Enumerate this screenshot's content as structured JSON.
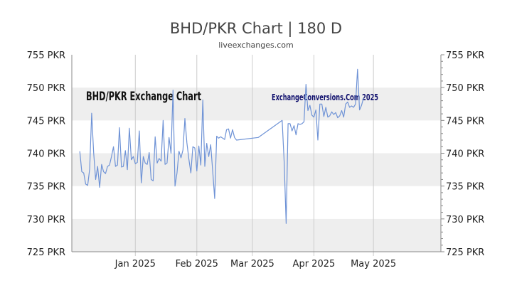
{
  "page": {
    "title": "BHD/PKR Chart | 180 D",
    "subtitle": "liveexchanges.com",
    "watermark_left": "BHD/PKR Exchange Chart",
    "watermark_right": "ExchangeConversions.Com 2025"
  },
  "colors": {
    "line": "#6f93d6",
    "band": "#eeeeee",
    "grid_vertical": "#cccccc",
    "axis": "#888888"
  },
  "chart_data": {
    "type": "line",
    "title": "BHD/PKR Chart | 180 D",
    "subtitle": "liveexchanges.com",
    "xlabel": "",
    "ylabel": "",
    "y_ticks": [
      "725 PKR",
      "730 PKR",
      "735 PKR",
      "740 PKR",
      "745 PKR",
      "750 PKR",
      "755 PKR"
    ],
    "y_tick_values": [
      725,
      730,
      735,
      740,
      745,
      750,
      755
    ],
    "ylim": [
      725,
      755
    ],
    "x_ticks": [
      "Jan 2025",
      "Feb 2025",
      "Mar 2025",
      "Apr 2025",
      "May 2025"
    ],
    "x_tick_values": [
      32,
      63,
      91,
      122,
      152
    ],
    "xlim": [
      0,
      186
    ],
    "series": [
      {
        "values": [
          [
            4,
            740.3
          ],
          [
            5,
            737.2
          ],
          [
            6,
            737.0
          ],
          [
            7,
            735.3
          ],
          [
            8,
            735.1
          ],
          [
            9,
            737.6
          ],
          [
            10,
            746.1
          ],
          [
            11,
            740.1
          ],
          [
            12,
            736.0
          ],
          [
            13,
            738.0
          ],
          [
            14,
            734.8
          ],
          [
            15,
            738.3
          ],
          [
            16,
            737.2
          ],
          [
            17,
            736.9
          ],
          [
            18,
            738.0
          ],
          [
            19,
            738.2
          ],
          [
            20,
            739.5
          ],
          [
            21,
            741.0
          ],
          [
            22,
            738.0
          ],
          [
            23,
            738.2
          ],
          [
            24,
            743.9
          ],
          [
            25,
            737.9
          ],
          [
            26,
            738.0
          ],
          [
            27,
            740.4
          ],
          [
            28,
            737.5
          ],
          [
            29,
            743.8
          ],
          [
            30,
            739.0
          ],
          [
            31,
            739.5
          ],
          [
            32,
            738.4
          ],
          [
            33,
            738.6
          ],
          [
            34,
            743.4
          ],
          [
            35,
            735.5
          ],
          [
            36,
            739.5
          ],
          [
            37,
            738.5
          ],
          [
            38,
            738.3
          ],
          [
            39,
            740.1
          ],
          [
            40,
            736.0
          ],
          [
            41,
            735.8
          ],
          [
            42,
            742.5
          ],
          [
            43,
            738.5
          ],
          [
            44,
            739.2
          ],
          [
            45,
            738.8
          ],
          [
            46,
            745.0
          ],
          [
            47,
            738.3
          ],
          [
            48,
            738.5
          ],
          [
            49,
            742.4
          ],
          [
            50,
            740.0
          ],
          [
            51,
            749.6
          ],
          [
            52,
            735.0
          ],
          [
            53,
            737.0
          ],
          [
            54,
            740.3
          ],
          [
            55,
            739.3
          ],
          [
            56,
            740.5
          ],
          [
            57,
            745.3
          ],
          [
            58,
            741.6
          ],
          [
            59,
            739.1
          ],
          [
            60,
            737.0
          ],
          [
            61,
            741.0
          ],
          [
            62,
            740.8
          ],
          [
            63,
            737.3
          ],
          [
            64,
            741.1
          ],
          [
            65,
            738.2
          ],
          [
            66,
            748.1
          ],
          [
            67,
            738.0
          ],
          [
            68,
            741.5
          ],
          [
            69,
            739.5
          ],
          [
            70,
            741.3
          ],
          [
            71,
            737.3
          ],
          [
            72,
            733.1
          ],
          [
            73,
            742.6
          ],
          [
            74,
            742.3
          ],
          [
            75,
            742.5
          ],
          [
            76,
            742.3
          ],
          [
            77,
            742.1
          ],
          [
            78,
            743.6
          ],
          [
            79,
            743.7
          ],
          [
            80,
            742.3
          ],
          [
            81,
            743.6
          ],
          [
            82,
            742.4
          ],
          [
            83,
            742.0
          ],
          [
            94,
            742.4
          ],
          [
            106,
            745.0
          ],
          [
            107,
            738.7
          ],
          [
            108,
            729.3
          ],
          [
            109,
            744.5
          ],
          [
            110,
            744.5
          ],
          [
            111,
            743.4
          ],
          [
            112,
            744.2
          ],
          [
            113,
            742.8
          ],
          [
            114,
            744.5
          ],
          [
            115,
            744.4
          ],
          [
            116,
            744.5
          ],
          [
            117,
            744.8
          ],
          [
            118,
            750.5
          ],
          [
            119,
            746.5
          ],
          [
            120,
            747.3
          ],
          [
            121,
            745.8
          ],
          [
            122,
            745.5
          ],
          [
            123,
            746.6
          ],
          [
            124,
            742.0
          ],
          [
            125,
            747.5
          ],
          [
            126,
            747.5
          ],
          [
            127,
            745.6
          ],
          [
            128,
            747.0
          ],
          [
            129,
            745.5
          ],
          [
            130,
            745.7
          ],
          [
            131,
            746.3
          ],
          [
            132,
            745.9
          ],
          [
            133,
            746.2
          ],
          [
            134,
            745.4
          ],
          [
            135,
            745.7
          ],
          [
            136,
            746.5
          ],
          [
            137,
            745.5
          ],
          [
            138,
            747.5
          ],
          [
            139,
            747.8
          ],
          [
            140,
            747.0
          ],
          [
            141,
            747.2
          ],
          [
            142,
            747.0
          ],
          [
            143,
            747.5
          ],
          [
            144,
            752.8
          ],
          [
            145,
            746.6
          ],
          [
            146,
            747.3
          ],
          [
            147,
            748.4
          ]
        ]
      }
    ],
    "grid": {
      "horizontal_bands": true,
      "vertical_lines": true
    },
    "legend": "none"
  }
}
